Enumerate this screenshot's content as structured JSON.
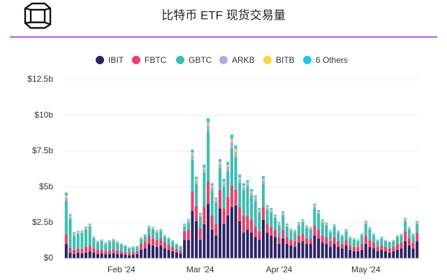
{
  "chart_data": {
    "type": "stacked-bar",
    "title": "比特币 ETF 现货交易量",
    "categories": [
      null,
      null,
      null,
      null,
      null,
      null,
      null,
      null,
      null,
      null,
      null,
      null,
      null,
      null,
      "Feb '24",
      null,
      null,
      null,
      null,
      null,
      null,
      null,
      null,
      null,
      null,
      null,
      null,
      null,
      null,
      null,
      null,
      null,
      null,
      null,
      "Mar '24",
      null,
      null,
      null,
      null,
      null,
      null,
      null,
      null,
      null,
      null,
      null,
      null,
      null,
      null,
      null,
      null,
      null,
      null,
      null,
      "Apr '24",
      null,
      null,
      null,
      null,
      null,
      null,
      null,
      null,
      null,
      null,
      null,
      null,
      null,
      null,
      null,
      null,
      null,
      null,
      null,
      null,
      null,
      "May '24",
      null,
      null,
      null,
      null,
      null,
      null,
      null,
      null,
      null,
      null,
      null,
      null,
      null
    ],
    "series": [
      {
        "name": "IBIT",
        "color": "#2b2463",
        "values": [
          1.0,
          0.4,
          0.3,
          0.4,
          0.35,
          0.4,
          0.5,
          0.4,
          0.3,
          0.35,
          0.3,
          0.3,
          0.35,
          0.3,
          0.3,
          0.25,
          0.2,
          0.25,
          0.3,
          0.6,
          0.7,
          1.0,
          0.9,
          0.8,
          0.9,
          0.7,
          0.6,
          0.5,
          0.4,
          0.35,
          1.3,
          1.3,
          3.3,
          2.6,
          1.3,
          2.4,
          3.8,
          2.0,
          1.6,
          3.5,
          2.4,
          3.0,
          3.6,
          3.7,
          2.6,
          1.8,
          2.0,
          1.8,
          1.5,
          1.3,
          2.7,
          1.8,
          1.6,
          1.5,
          1.0,
          1.4,
          1.0,
          0.9,
          0.8,
          1.1,
          1.2,
          1.0,
          1.0,
          1.6,
          1.4,
          1.1,
          1.0,
          0.8,
          1.0,
          0.8,
          0.7,
          0.9,
          0.6,
          0.5,
          0.5,
          0.6,
          1.0,
          0.8,
          0.7,
          0.5,
          0.6,
          0.5,
          0.4,
          0.5,
          0.6,
          0.7,
          1.2,
          0.9,
          0.7,
          1.2
        ]
      },
      {
        "name": "FBTC",
        "color": "#e8416a",
        "values": [
          0.7,
          0.35,
          0.3,
          0.3,
          0.3,
          0.4,
          0.4,
          0.3,
          0.3,
          0.25,
          0.2,
          0.25,
          0.3,
          0.25,
          0.2,
          0.2,
          0.15,
          0.2,
          0.2,
          0.4,
          0.45,
          0.6,
          0.5,
          0.5,
          0.5,
          0.4,
          0.35,
          0.3,
          0.25,
          0.2,
          0.6,
          0.7,
          1.4,
          1.1,
          0.8,
          1.2,
          1.6,
          1.0,
          0.8,
          1.3,
          1.1,
          1.3,
          1.5,
          1.1,
          1.0,
          1.2,
          1.0,
          0.9,
          0.7,
          0.6,
          0.9,
          0.6,
          0.6,
          0.5,
          0.5,
          0.6,
          0.5,
          0.4,
          0.4,
          0.5,
          0.5,
          0.4,
          0.4,
          0.7,
          0.6,
          0.5,
          0.5,
          0.4,
          0.5,
          0.4,
          0.3,
          0.4,
          0.3,
          0.3,
          0.3,
          0.4,
          0.6,
          0.5,
          0.4,
          0.3,
          0.3,
          0.3,
          0.3,
          0.3,
          0.4,
          0.4,
          0.7,
          0.5,
          0.4,
          0.6
        ]
      },
      {
        "name": "GBTC",
        "color": "#3dbdb0",
        "values": [
          2.3,
          2.0,
          1.0,
          1.0,
          1.1,
          1.2,
          1.3,
          0.7,
          0.5,
          0.6,
          0.5,
          0.6,
          0.6,
          0.5,
          0.45,
          0.4,
          0.35,
          0.3,
          0.3,
          0.35,
          0.4,
          0.5,
          0.6,
          0.5,
          0.5,
          0.4,
          0.4,
          0.35,
          0.3,
          0.25,
          0.3,
          0.5,
          2.2,
          1.5,
          0.8,
          2.4,
          3.5,
          1.8,
          1.5,
          1.5,
          1.5,
          1.8,
          2.6,
          2.3,
          1.7,
          1.8,
          2.0,
          1.7,
          1.8,
          1.3,
          1.6,
          1.0,
          1.0,
          0.8,
          0.8,
          1.0,
          0.7,
          0.6,
          0.6,
          0.7,
          0.8,
          0.7,
          0.6,
          1.2,
          1.1,
          0.9,
          0.8,
          0.6,
          0.7,
          0.6,
          0.5,
          0.6,
          0.5,
          0.5,
          0.4,
          0.6,
          0.8,
          0.7,
          0.5,
          0.4,
          0.5,
          0.4,
          0.4,
          0.4,
          0.5,
          0.5,
          0.7,
          0.6,
          0.5,
          0.6
        ]
      },
      {
        "name": "ARKB",
        "color": "#b3a8dc",
        "values": [
          0.25,
          0.15,
          0.1,
          0.1,
          0.08,
          0.1,
          0.1,
          0.05,
          0.05,
          0.05,
          0.05,
          0.05,
          0.05,
          0.05,
          0.04,
          0.04,
          0.03,
          0.03,
          0.03,
          0.05,
          0.06,
          0.08,
          0.08,
          0.07,
          0.07,
          0.06,
          0.05,
          0.05,
          0.04,
          0.04,
          0.1,
          0.12,
          0.35,
          0.25,
          0.12,
          0.25,
          0.4,
          0.2,
          0.15,
          0.3,
          0.25,
          0.3,
          0.45,
          0.35,
          0.25,
          0.2,
          0.2,
          0.2,
          0.2,
          0.15,
          0.25,
          0.15,
          0.14,
          0.12,
          0.1,
          0.12,
          0.1,
          0.08,
          0.08,
          0.1,
          0.1,
          0.09,
          0.08,
          0.15,
          0.12,
          0.1,
          0.09,
          0.07,
          0.08,
          0.07,
          0.06,
          0.07,
          0.05,
          0.05,
          0.05,
          0.06,
          0.1,
          0.08,
          0.06,
          0.05,
          0.05,
          0.04,
          0.04,
          0.04,
          0.05,
          0.05,
          0.1,
          0.08,
          0.06,
          0.1
        ]
      },
      {
        "name": "BITB",
        "color": "#f5d73c",
        "values": [
          0.15,
          0.1,
          0.05,
          0.05,
          0.05,
          0.05,
          0.05,
          0.04,
          0.03,
          0.03,
          0.03,
          0.03,
          0.03,
          0.03,
          0.03,
          0.02,
          0.02,
          0.02,
          0.02,
          0.03,
          0.03,
          0.04,
          0.04,
          0.04,
          0.04,
          0.03,
          0.03,
          0.03,
          0.02,
          0.02,
          0.05,
          0.05,
          0.15,
          0.1,
          0.06,
          0.1,
          0.2,
          0.1,
          0.08,
          0.15,
          0.1,
          0.15,
          0.2,
          0.2,
          0.1,
          0.1,
          0.1,
          0.1,
          0.08,
          0.07,
          0.1,
          0.07,
          0.07,
          0.05,
          0.05,
          0.06,
          0.05,
          0.04,
          0.04,
          0.05,
          0.05,
          0.04,
          0.04,
          0.07,
          0.06,
          0.05,
          0.04,
          0.04,
          0.04,
          0.03,
          0.03,
          0.03,
          0.03,
          0.03,
          0.02,
          0.03,
          0.05,
          0.04,
          0.03,
          0.02,
          0.03,
          0.02,
          0.02,
          0.02,
          0.03,
          0.03,
          0.05,
          0.04,
          0.03,
          0.05
        ]
      },
      {
        "name": "6 Others",
        "color": "#1ec8ea",
        "values": [
          0.2,
          0.1,
          0.08,
          0.06,
          0.06,
          0.06,
          0.07,
          0.05,
          0.04,
          0.04,
          0.04,
          0.04,
          0.04,
          0.04,
          0.03,
          0.03,
          0.03,
          0.03,
          0.03,
          0.04,
          0.05,
          0.06,
          0.06,
          0.05,
          0.05,
          0.04,
          0.04,
          0.04,
          0.03,
          0.03,
          0.07,
          0.08,
          0.2,
          0.15,
          0.1,
          0.2,
          0.3,
          0.15,
          0.1,
          0.2,
          0.2,
          0.2,
          0.3,
          0.25,
          0.2,
          0.15,
          0.15,
          0.15,
          0.12,
          0.1,
          0.2,
          0.1,
          0.1,
          0.08,
          0.08,
          0.1,
          0.08,
          0.06,
          0.06,
          0.07,
          0.08,
          0.07,
          0.06,
          0.1,
          0.1,
          0.08,
          0.07,
          0.06,
          0.06,
          0.05,
          0.05,
          0.05,
          0.04,
          0.04,
          0.04,
          0.05,
          0.08,
          0.06,
          0.05,
          0.04,
          0.04,
          0.03,
          0.03,
          0.03,
          0.04,
          0.04,
          0.08,
          0.06,
          0.05,
          0.07
        ]
      }
    ],
    "ylim": [
      0,
      12.5
    ],
    "yticks": [
      {
        "value": 0,
        "label": "$0"
      },
      {
        "value": 2.5,
        "label": "$2.5b"
      },
      {
        "value": 5,
        "label": "$5b"
      },
      {
        "value": 7.5,
        "label": "$7.5b"
      },
      {
        "value": 10,
        "label": "$10b"
      },
      {
        "value": 12.5,
        "label": "$12.5b"
      }
    ],
    "grid": true
  }
}
